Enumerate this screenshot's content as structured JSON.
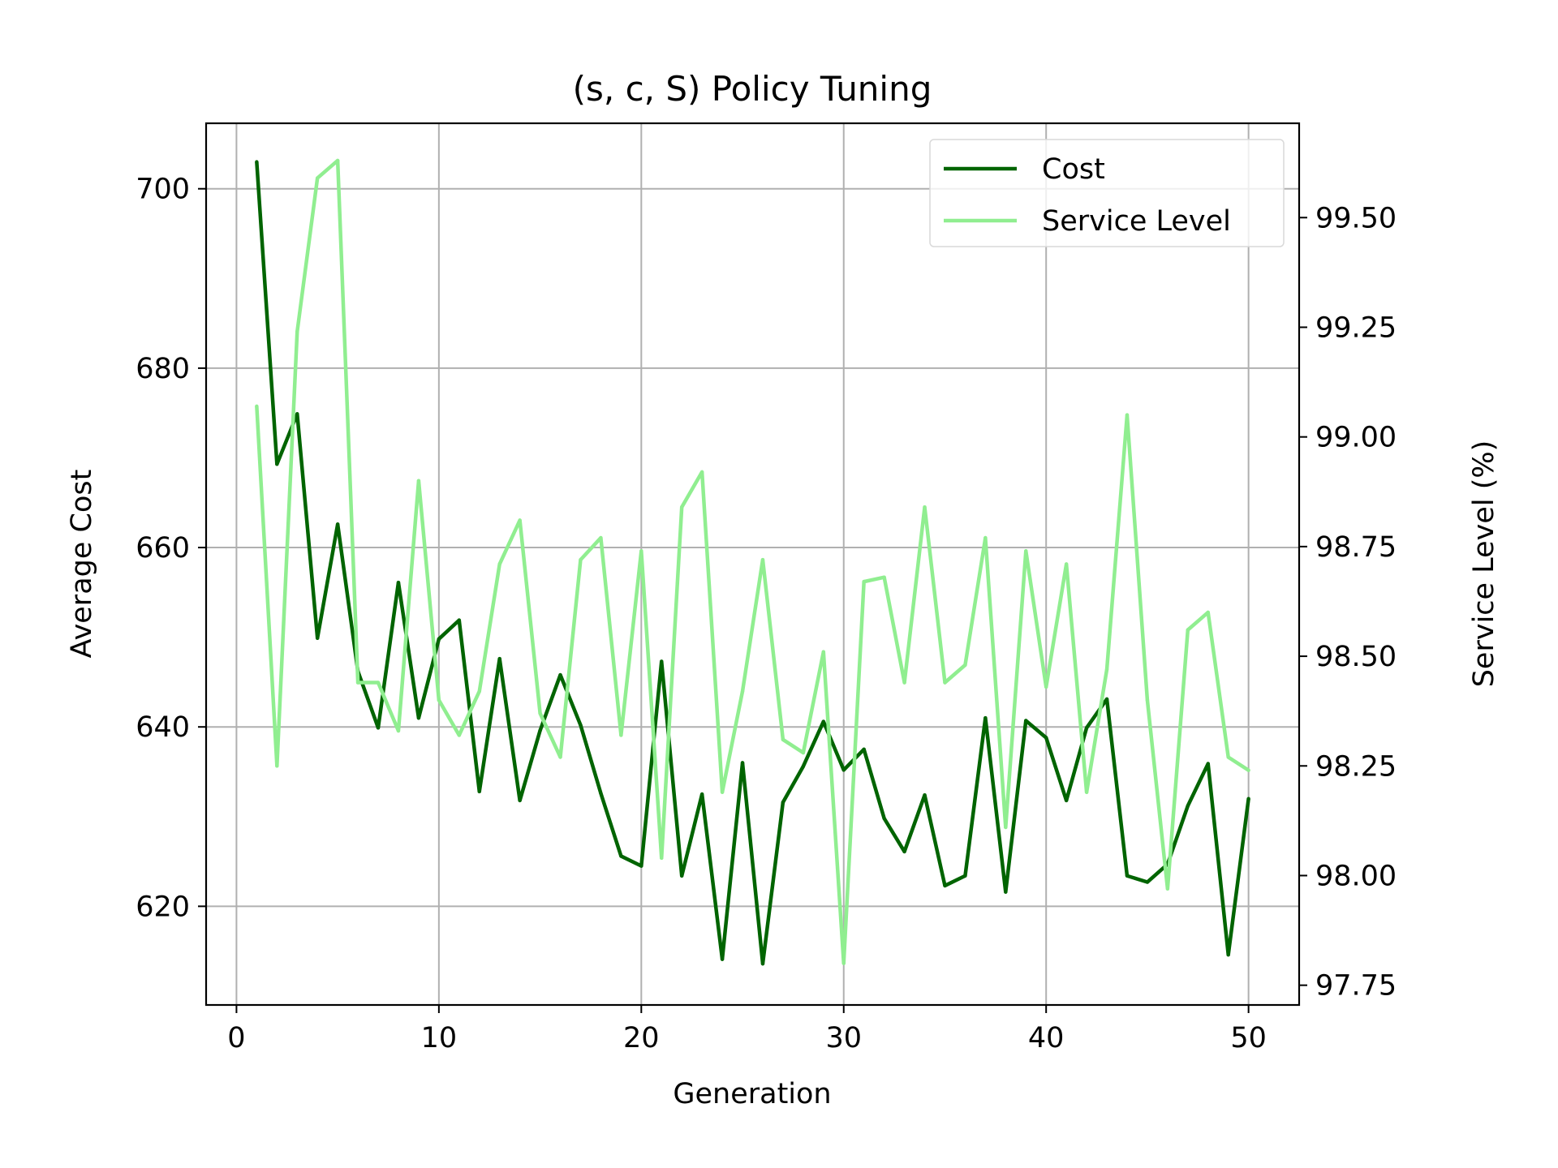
{
  "chart_data": {
    "type": "line",
    "title": "(s, c, S) Policy Tuning",
    "xlabel": "Generation",
    "ylabel": "Average Cost",
    "y2label": "Service Level (%)",
    "xlim": [
      -1.5,
      52.5
    ],
    "ylim": [
      609.0,
      707.3
    ],
    "y2lim": [
      97.705,
      99.715
    ],
    "xticks": [
      0,
      10,
      20,
      30,
      40,
      50
    ],
    "yticks": [
      620,
      640,
      660,
      680,
      700
    ],
    "y2ticks": [
      "97.75",
      "98.00",
      "98.25",
      "98.50",
      "98.75",
      "99.00",
      "99.25",
      "99.50"
    ],
    "grid": true,
    "legend_position": "top-right",
    "x": [
      1,
      2,
      3,
      4,
      5,
      6,
      7,
      8,
      9,
      10,
      11,
      12,
      13,
      14,
      15,
      16,
      17,
      18,
      19,
      20,
      21,
      22,
      23,
      24,
      25,
      26,
      27,
      28,
      29,
      30,
      31,
      32,
      33,
      34,
      35,
      36,
      37,
      38,
      39,
      40,
      41,
      42,
      43,
      44,
      45,
      46,
      47,
      48,
      49,
      50
    ],
    "series": [
      {
        "name": "Cost",
        "axis": "left",
        "color": "#006400",
        "values": [
          703.0,
          669.3,
          674.9,
          649.9,
          662.6,
          646.2,
          639.9,
          656.1,
          641.0,
          649.8,
          651.9,
          632.8,
          647.6,
          631.8,
          639.6,
          645.8,
          640.2,
          632.6,
          625.6,
          624.5,
          647.3,
          623.4,
          632.5,
          614.1,
          636.0,
          613.6,
          631.6,
          635.6,
          640.6,
          635.2,
          637.5,
          629.8,
          626.1,
          632.4,
          622.3,
          623.4,
          641.0,
          621.6,
          640.7,
          638.8,
          631.8,
          639.9,
          643.1,
          623.4,
          622.7,
          624.7,
          631.2,
          635.9,
          614.6,
          632.0
        ]
      },
      {
        "name": "Service Level",
        "axis": "right",
        "color": "#90EE90",
        "values": [
          99.07,
          98.25,
          99.24,
          99.59,
          99.63,
          98.44,
          98.44,
          98.33,
          98.9,
          98.4,
          98.32,
          98.42,
          98.71,
          98.81,
          98.37,
          98.27,
          98.72,
          98.77,
          98.32,
          98.74,
          98.04,
          98.84,
          98.92,
          98.19,
          98.42,
          98.72,
          98.31,
          98.28,
          98.51,
          97.8,
          98.67,
          98.68,
          98.44,
          98.84,
          98.44,
          98.48,
          98.77,
          98.11,
          98.74,
          98.43,
          98.71,
          98.19,
          98.47,
          99.05,
          98.4,
          97.97,
          98.56,
          98.6,
          98.27,
          98.24
        ]
      }
    ]
  }
}
